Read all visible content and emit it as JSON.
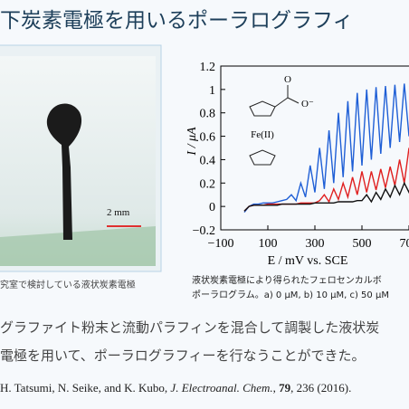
{
  "header": {
    "title": "下炭素電極を用いるポーラログラフィ"
  },
  "photo": {
    "scale_label": "2 mm",
    "caption": "究室で検討している液状炭素電極"
  },
  "chart_data": {
    "type": "line",
    "xlabel": "E / mV vs. SCE",
    "ylabel": "I / μA",
    "annotations": [
      "Fe(II)",
      "O",
      "O⁻"
    ],
    "x": [
      0,
      20,
      40,
      60,
      80,
      100,
      120,
      140,
      160,
      180,
      200,
      220,
      240,
      260,
      280,
      300,
      320,
      340,
      360,
      380,
      400,
      420,
      440,
      460,
      480,
      500,
      520,
      540,
      560,
      580,
      600,
      620,
      640,
      660,
      680,
      700,
      720,
      740,
      760
    ],
    "series": [
      {
        "color": "#1f5fd6",
        "values": [
          -0.05,
          0,
          0.02,
          0.02,
          0.03,
          0.03,
          0.03,
          0.04,
          0.05,
          0.06,
          0.1,
          0.05,
          0.2,
          0.08,
          0.35,
          0.12,
          0.5,
          0.15,
          0.65,
          0.2,
          0.8,
          0.25,
          0.9,
          0.3,
          0.97,
          0.35,
          1,
          0.4,
          1.02,
          0.45,
          1.03,
          0.5,
          1.04,
          0.55,
          1.05,
          0.6,
          1.06,
          0.65,
          1.08
        ]
      },
      {
        "color": "#e02020",
        "values": [
          -0.04,
          0,
          0.01,
          0.01,
          0.01,
          0.02,
          0.02,
          0.02,
          0.02,
          0.02,
          0.02,
          0.02,
          0.03,
          0.03,
          0.03,
          0.03,
          0.05,
          0.1,
          0.04,
          0.15,
          0.06,
          0.2,
          0.08,
          0.25,
          0.1,
          0.3,
          0.12,
          0.3,
          0.14,
          0.32,
          0.16,
          0.34,
          0.18,
          0.4,
          0.2,
          0.5,
          0.25,
          0.6,
          0.3
        ]
      },
      {
        "color": "#111111",
        "values": [
          -0.04,
          0,
          0.01,
          0.01,
          0.01,
          0.01,
          0.01,
          0.01,
          0.02,
          0.02,
          0.02,
          0.02,
          0.02,
          0.02,
          0.02,
          0.03,
          0.03,
          0.03,
          0.03,
          0.03,
          0.04,
          0.04,
          0.04,
          0.04,
          0.05,
          0.05,
          0.1,
          0.04,
          0.12,
          0.06,
          0.15,
          0.08,
          0.18,
          0.1,
          0.2,
          0.12,
          0.25,
          0.15,
          0.3
        ]
      }
    ],
    "xlim": [
      -100,
      800
    ],
    "ylim": [
      -0.2,
      1.2
    ],
    "xticks": [
      {
        "value": -100,
        "label": "−100"
      },
      100,
      300,
      500,
      700
    ],
    "yticks": [
      {
        "value": -0.2,
        "label": "−0.2"
      },
      0,
      0.2,
      0.4,
      0.6,
      0.8,
      1,
      1.2
    ]
  },
  "chart_caption": [
    "液状炭素電極により得られたフェロセンカルボ",
    "ポーラログラム。a) 0 μM, b) 10 μM, c) 50 μM"
  ],
  "body": [
    "グラファイト粉末と流動パラフィンを混合して調製した液状炭",
    "電極を用いて、ポーラログラフィーを行なうことができた。"
  ],
  "reference": [
    "H. Tatsumi, N. Seike, and K. Kubo, ",
    "J. Electroanal. Chem.",
    ", ",
    "79",
    ", 236 (2016)."
  ]
}
